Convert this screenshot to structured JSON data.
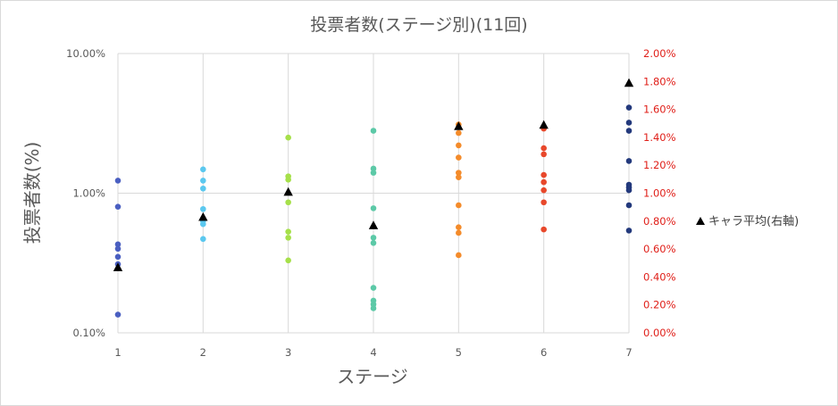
{
  "chart_data": {
    "type": "scatter",
    "title": "投票者数(ステージ別)(11回)",
    "xlabel": "ステージ",
    "ylabel": "投票者数(%)",
    "x_ticks": [
      "1",
      "2",
      "3",
      "4",
      "5",
      "6",
      "7"
    ],
    "xlim": [
      1,
      7
    ],
    "y_left": {
      "scale": "log",
      "ylim": [
        0.1,
        10
      ],
      "tick_labels": [
        "0.10%",
        "1.00%",
        "10.00%"
      ],
      "tick_values": [
        0.1,
        1,
        10
      ]
    },
    "y_right": {
      "scale": "linear",
      "ylim": [
        0,
        2
      ],
      "tick_labels": [
        "0.00%",
        "0.20%",
        "0.40%",
        "0.60%",
        "0.80%",
        "1.00%",
        "1.20%",
        "1.40%",
        "1.60%",
        "1.80%",
        "2.00%"
      ],
      "tick_values": [
        0,
        0.2,
        0.4,
        0.6,
        0.8,
        1.0,
        1.2,
        1.4,
        1.6,
        1.8,
        2.0
      ],
      "color": "#e0201a"
    },
    "grid": true,
    "legend": {
      "placement": "right",
      "entries": [
        "キャラ平均(右軸)"
      ]
    },
    "series": [
      {
        "x": 1,
        "color": "#4a5fc1",
        "values": [
          1.23,
          0.8,
          0.43,
          0.4,
          0.35,
          0.31,
          0.135
        ]
      },
      {
        "x": 2,
        "color": "#5bc8ef",
        "values": [
          1.48,
          1.23,
          1.08,
          0.77,
          0.63,
          0.6,
          0.47
        ]
      },
      {
        "x": 3,
        "color": "#a6e04a",
        "values": [
          2.5,
          1.32,
          1.25,
          0.86,
          0.53,
          0.48,
          0.33
        ]
      },
      {
        "x": 4,
        "color": "#5cc9a7",
        "values": [
          2.8,
          1.5,
          1.4,
          0.78,
          0.48,
          0.44,
          0.21,
          0.17,
          0.16,
          0.15
        ]
      },
      {
        "x": 5,
        "color": "#f48b2a",
        "values": [
          3.1,
          2.7,
          2.2,
          1.8,
          1.4,
          1.3,
          0.82,
          0.57,
          0.52,
          0.36
        ]
      },
      {
        "x": 6,
        "color": "#e8482b",
        "values": [
          2.9,
          2.1,
          1.9,
          1.35,
          1.2,
          1.05,
          0.86,
          0.55
        ]
      },
      {
        "x": 7,
        "color": "#23397c",
        "values": [
          4.1,
          3.2,
          2.8,
          1.7,
          1.15,
          1.1,
          1.05,
          0.82,
          0.54
        ]
      }
    ],
    "average_series": {
      "axis": "right",
      "marker": "triangle",
      "color": "#000000",
      "x": [
        1,
        2,
        3,
        4,
        5,
        6,
        7
      ],
      "values": [
        0.47,
        0.83,
        1.01,
        0.77,
        1.48,
        1.49,
        1.79
      ]
    }
  }
}
